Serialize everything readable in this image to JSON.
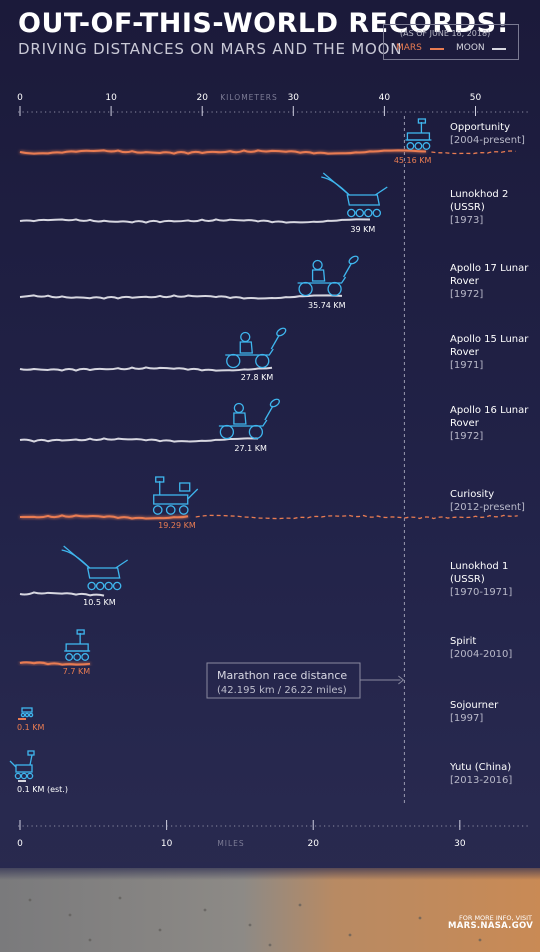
{
  "title": "OUT-OF-THIS-WORLD RECORDS!",
  "subtitle": "DRIVING DISTANCES ON MARS AND THE MOON",
  "legend": {
    "date_note": "(AS OF JUNE 18, 2018)",
    "mars_label": "MARS",
    "moon_label": "MOON",
    "mars_color": "#e97c52",
    "moon_color": "#d7d7e0"
  },
  "marathon": {
    "title": "Marathon race distance",
    "detail": "(42.195 km / 26.22 miles)",
    "km": 42.195
  },
  "footer": {
    "line1": "FOR MORE INFO, VISIT",
    "line2": "MARS.NASA.GOV"
  },
  "chart_data": {
    "type": "bar",
    "title": "OUT-OF-THIS-WORLD RECORDS!",
    "top_axis": {
      "label": "KILOMETERS",
      "ticks": [
        0,
        10,
        20,
        30,
        40,
        50
      ],
      "range": [
        0,
        55
      ]
    },
    "bottom_axis": {
      "label": "MILES",
      "ticks": [
        0,
        10,
        20,
        30
      ],
      "range": [
        0,
        34.18
      ]
    },
    "rovers": [
      {
        "name": "Opportunity",
        "period": "[2004-present]",
        "planet": "Mars",
        "km": 45.16,
        "value_label": "45.16 KM",
        "ongoing": true
      },
      {
        "name": "Lunokhod 2 (USSR)",
        "period": "[1973]",
        "planet": "Moon",
        "km": 39,
        "value_label": "39 KM",
        "ongoing": false
      },
      {
        "name": "Apollo 17 Lunar Rover",
        "period": "[1972]",
        "planet": "Moon",
        "km": 35.74,
        "value_label": "35.74 KM",
        "ongoing": false
      },
      {
        "name": "Apollo 15 Lunar Rover",
        "period": "[1971]",
        "planet": "Moon",
        "km": 27.8,
        "value_label": "27.8 KM",
        "ongoing": false
      },
      {
        "name": "Apollo 16 Lunar Rover",
        "period": "[1972]",
        "planet": "Moon",
        "km": 27.1,
        "value_label": "27.1 KM",
        "ongoing": false
      },
      {
        "name": "Curiosity",
        "period": "[2012-present]",
        "planet": "Mars",
        "km": 19.29,
        "value_label": "19.29 KM",
        "ongoing": true
      },
      {
        "name": "Lunokhod 1 (USSR)",
        "period": "[1970-1971]",
        "planet": "Moon",
        "km": 10.5,
        "value_label": "10.5 KM",
        "ongoing": false
      },
      {
        "name": "Spirit",
        "period": "[2004-2010]",
        "planet": "Mars",
        "km": 7.7,
        "value_label": "7.7 KM",
        "ongoing": false
      },
      {
        "name": "Sojourner",
        "period": "[1997]",
        "planet": "Mars",
        "km": 0.1,
        "value_label": "0.1 KM",
        "ongoing": false
      },
      {
        "name": "Yutu (China)",
        "period": "[2013-2016]",
        "planet": "Moon",
        "km": 0.1,
        "value_label": "0.1 KM (est.)",
        "ongoing": false
      }
    ]
  }
}
